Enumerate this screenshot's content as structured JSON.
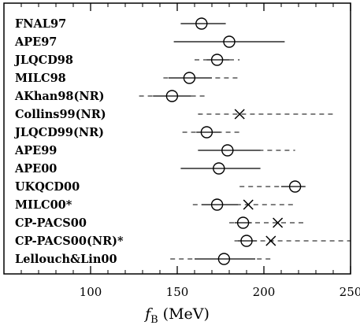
{
  "chart_data": {
    "type": "scatter",
    "xlabel_main": "f",
    "xlabel_sub": "B",
    "xlabel_unit": "(MeV)",
    "xlim": [
      50,
      250
    ],
    "xticks": [
      "100",
      "150",
      "200",
      "250"
    ],
    "grid": false,
    "entries": [
      {
        "label": "FNAL97",
        "value": 164,
        "marker": "circle",
        "stat": [
          152,
          178
        ],
        "syst": []
      },
      {
        "label": "APE97",
        "value": 180,
        "marker": "circle",
        "stat": [
          148,
          212
        ],
        "syst": []
      },
      {
        "label": "JLQCD98",
        "value": 173,
        "marker": "circle",
        "stat": [
          167,
          180
        ],
        "syst": [
          160,
          186
        ]
      },
      {
        "label": "MILC98",
        "value": 157,
        "marker": "circle",
        "stat": [
          145,
          170
        ],
        "syst": [
          142,
          185
        ]
      },
      {
        "label": "AKhan98(NR)",
        "value": 147,
        "marker": "circle",
        "stat": [
          136,
          158
        ],
        "syst": [
          128,
          166
        ]
      },
      {
        "label": "Collins99(NR)",
        "value": 186,
        "marker": "cross",
        "stat": [],
        "syst": [
          162,
          242
        ]
      },
      {
        "label": "JLQCD99(NR)",
        "value": 167,
        "marker": "circle",
        "stat": [
          161,
          175
        ],
        "syst": [
          153,
          188
        ]
      },
      {
        "label": "APE99",
        "value": 179,
        "marker": "circle",
        "stat": [
          162,
          198
        ],
        "syst": [
          162,
          218
        ]
      },
      {
        "label": "APE00",
        "value": 174,
        "marker": "circle",
        "stat": [
          152,
          198
        ],
        "syst": []
      },
      {
        "label": "UKQCD00",
        "value": 218,
        "marker": "circle",
        "stat": [
          210,
          224
        ],
        "syst": [
          186,
          224
        ]
      },
      {
        "label": "MILC00*",
        "value": 173,
        "marker": "circle",
        "stat": [
          164,
          185
        ],
        "syst": [
          159,
          218
        ],
        "cross_value": 191
      },
      {
        "label": "CP-PACS00",
        "value": 188,
        "marker": "circle",
        "stat": [
          183,
          193
        ],
        "syst": [
          180,
          224
        ],
        "cross_value": 208
      },
      {
        "label": "CP-PACS00(NR)*",
        "value": 190,
        "marker": "circle",
        "stat": [
          185,
          196
        ],
        "syst": [
          183,
          255
        ],
        "cross_value": 204
      },
      {
        "label": "Lellouch&Lin00",
        "value": 177,
        "marker": "circle",
        "stat": [
          160,
          195
        ],
        "syst": [
          146,
          205
        ]
      }
    ]
  }
}
